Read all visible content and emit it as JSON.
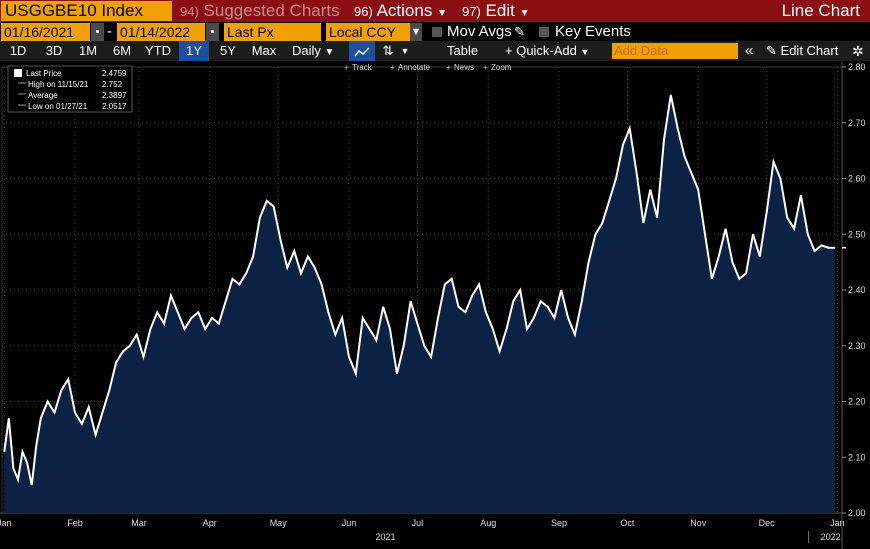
{
  "toolbar": {
    "ticker": "USGGBE10 Index",
    "suggested_num": "94)",
    "suggested": "Suggested Charts",
    "actions_num": "96)",
    "actions": "Actions",
    "edit_num": "97)",
    "edit": "Edit",
    "title_right": "Line Chart"
  },
  "controls": {
    "start_date": "01/16/2021",
    "end_date": "01/14/2022",
    "field": "Last Px",
    "currency": "Local CCY",
    "mov_avgs": "Mov Avgs",
    "key_events": "Key Events"
  },
  "ranges": [
    "1D",
    "3D",
    "1M",
    "6M",
    "YTD",
    "1Y",
    "5Y",
    "Max"
  ],
  "selected_range": "1Y",
  "period": "Daily",
  "table": "Table",
  "quick_add": "+ Quick-Add",
  "add_data_placeholder": "Add Data",
  "edit_chart": "Edit Chart",
  "chart_tools": [
    "Track",
    "Annotate",
    "News",
    "Zoom"
  ],
  "legend": [
    {
      "label": "Last Price",
      "value": "2.4759"
    },
    {
      "label": "High on 11/15/21",
      "value": "2.752"
    },
    {
      "label": "Average",
      "value": "2.3897"
    },
    {
      "label": "Low on 01/27/21",
      "value": "2.0517"
    }
  ],
  "colors": {
    "line": "#ffffff",
    "fill": "#0b2244",
    "accent": "#f0a000",
    "header": "#8a0e12"
  },
  "chart_data": {
    "type": "area",
    "title": "",
    "xlabel": "",
    "ylabel": "",
    "ylim": [
      2.0,
      2.8
    ],
    "yticks": [
      2.0,
      2.1,
      2.2,
      2.3,
      2.4,
      2.5,
      2.6,
      2.7,
      2.8
    ],
    "ytick_labels": [
      "2.00",
      "2.10",
      "2.20",
      "2.30",
      "2.40",
      "2.50",
      "2.60",
      "2.70",
      "2.80"
    ],
    "xticks": [
      "2021-01-15",
      "2021-02-15",
      "2021-03-15",
      "2021-04-15",
      "2021-05-15",
      "2021-06-15",
      "2021-07-15",
      "2021-08-15",
      "2021-09-15",
      "2021-10-15",
      "2021-11-15",
      "2021-12-15",
      "2022-01-15"
    ],
    "xtick_labels": [
      "Jan",
      "Feb",
      "Mar",
      "Apr",
      "May",
      "Jun",
      "Jul",
      "Aug",
      "Sep",
      "Oct",
      "Nov",
      "Dec",
      "Jan"
    ],
    "year_labels": [
      {
        "date": "2021-07-01",
        "label": "2021"
      },
      {
        "date": "2022-01-12",
        "label": "2022"
      }
    ],
    "grid": true,
    "series": [
      {
        "name": "Last Price",
        "x": [
          "2021-01-15",
          "2021-01-17",
          "2021-01-19",
          "2021-01-21",
          "2021-01-23",
          "2021-01-25",
          "2021-01-27",
          "2021-01-29",
          "2021-01-31",
          "2021-02-03",
          "2021-02-06",
          "2021-02-09",
          "2021-02-12",
          "2021-02-15",
          "2021-02-18",
          "2021-02-21",
          "2021-02-24",
          "2021-02-27",
          "2021-03-02",
          "2021-03-05",
          "2021-03-08",
          "2021-03-11",
          "2021-03-14",
          "2021-03-17",
          "2021-03-20",
          "2021-03-23",
          "2021-03-26",
          "2021-03-29",
          "2021-04-01",
          "2021-04-04",
          "2021-04-07",
          "2021-04-10",
          "2021-04-13",
          "2021-04-16",
          "2021-04-19",
          "2021-04-22",
          "2021-04-25",
          "2021-04-28",
          "2021-05-01",
          "2021-05-04",
          "2021-05-07",
          "2021-05-10",
          "2021-05-13",
          "2021-05-16",
          "2021-05-19",
          "2021-05-22",
          "2021-05-25",
          "2021-05-28",
          "2021-05-31",
          "2021-06-03",
          "2021-06-06",
          "2021-06-09",
          "2021-06-12",
          "2021-06-15",
          "2021-06-18",
          "2021-06-21",
          "2021-06-24",
          "2021-06-27",
          "2021-06-30",
          "2021-07-03",
          "2021-07-06",
          "2021-07-09",
          "2021-07-12",
          "2021-07-15",
          "2021-07-18",
          "2021-07-21",
          "2021-07-24",
          "2021-07-27",
          "2021-07-30",
          "2021-08-02",
          "2021-08-05",
          "2021-08-08",
          "2021-08-11",
          "2021-08-14",
          "2021-08-17",
          "2021-08-20",
          "2021-08-23",
          "2021-08-26",
          "2021-08-29",
          "2021-09-01",
          "2021-09-04",
          "2021-09-07",
          "2021-09-10",
          "2021-09-13",
          "2021-09-16",
          "2021-09-19",
          "2021-09-22",
          "2021-09-25",
          "2021-09-28",
          "2021-10-01",
          "2021-10-04",
          "2021-10-07",
          "2021-10-10",
          "2021-10-13",
          "2021-10-16",
          "2021-10-19",
          "2021-10-22",
          "2021-10-25",
          "2021-10-28",
          "2021-10-31",
          "2021-11-03",
          "2021-11-06",
          "2021-11-09",
          "2021-11-12",
          "2021-11-15",
          "2021-11-18",
          "2021-11-21",
          "2021-11-24",
          "2021-11-27",
          "2021-11-30",
          "2021-12-03",
          "2021-12-06",
          "2021-12-09",
          "2021-12-12",
          "2021-12-15",
          "2021-12-18",
          "2021-12-21",
          "2021-12-24",
          "2021-12-27",
          "2021-12-30",
          "2022-01-02",
          "2022-01-05",
          "2022-01-08",
          "2022-01-11",
          "2022-01-14"
        ],
        "y": [
          2.11,
          2.17,
          2.08,
          2.06,
          2.11,
          2.09,
          2.05,
          2.12,
          2.17,
          2.2,
          2.18,
          2.22,
          2.24,
          2.18,
          2.16,
          2.19,
          2.14,
          2.18,
          2.22,
          2.27,
          2.29,
          2.3,
          2.32,
          2.28,
          2.33,
          2.36,
          2.34,
          2.39,
          2.36,
          2.33,
          2.35,
          2.36,
          2.33,
          2.35,
          2.34,
          2.38,
          2.42,
          2.41,
          2.43,
          2.46,
          2.53,
          2.56,
          2.55,
          2.49,
          2.44,
          2.47,
          2.43,
          2.46,
          2.44,
          2.41,
          2.36,
          2.32,
          2.35,
          2.28,
          2.25,
          2.35,
          2.33,
          2.31,
          2.37,
          2.33,
          2.25,
          2.3,
          2.38,
          2.34,
          2.3,
          2.28,
          2.35,
          2.41,
          2.42,
          2.37,
          2.36,
          2.39,
          2.41,
          2.36,
          2.33,
          2.29,
          2.33,
          2.38,
          2.4,
          2.33,
          2.35,
          2.38,
          2.37,
          2.35,
          2.4,
          2.35,
          2.32,
          2.38,
          2.45,
          2.5,
          2.52,
          2.56,
          2.6,
          2.66,
          2.69,
          2.61,
          2.52,
          2.58,
          2.53,
          2.67,
          2.75,
          2.69,
          2.64,
          2.61,
          2.58,
          2.5,
          2.42,
          2.46,
          2.51,
          2.45,
          2.42,
          2.43,
          2.5,
          2.46,
          2.54,
          2.63,
          2.6,
          2.53,
          2.51,
          2.57,
          2.5,
          2.47,
          2.48,
          2.4759,
          2.4759
        ]
      }
    ]
  }
}
